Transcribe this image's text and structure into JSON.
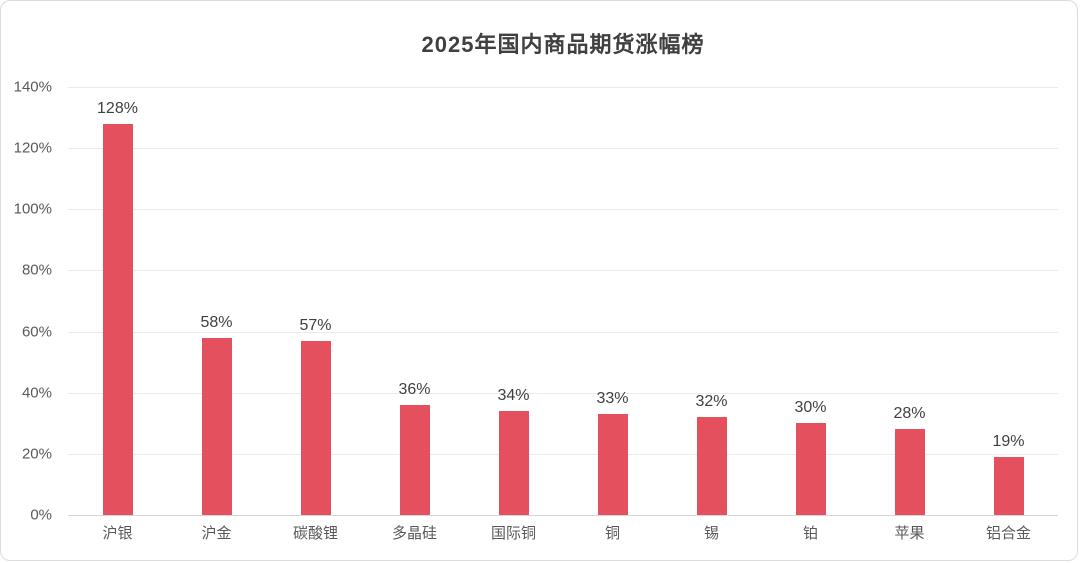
{
  "chart_data": {
    "type": "bar",
    "title": "2025年国内商品期货涨幅榜",
    "categories": [
      "沪银",
      "沪金",
      "碳酸锂",
      "多晶硅",
      "国际铜",
      "铜",
      "锡",
      "铂",
      "苹果",
      "铝合金"
    ],
    "values": [
      128,
      58,
      57,
      36,
      34,
      33,
      32,
      30,
      28,
      19
    ],
    "data_labels": [
      "128%",
      "58%",
      "57%",
      "36%",
      "34%",
      "33%",
      "32%",
      "30%",
      "28%",
      "19%"
    ],
    "xlabel": "",
    "ylabel": "",
    "ylim": [
      0,
      140
    ],
    "y_tick_step": 20,
    "y_ticks": [
      "0%",
      "20%",
      "40%",
      "60%",
      "80%",
      "100%",
      "120%",
      "140%"
    ],
    "grid": true,
    "legend_position": "none"
  },
  "colors": {
    "bar": "#e4505e",
    "title": "#404040",
    "data_label": "#404040",
    "tick_label": "#595959",
    "gridline": "#ebebeb",
    "axis_line": "#d6d6d6",
    "frame_border": "#dcdcdc",
    "background": "#ffffff"
  }
}
